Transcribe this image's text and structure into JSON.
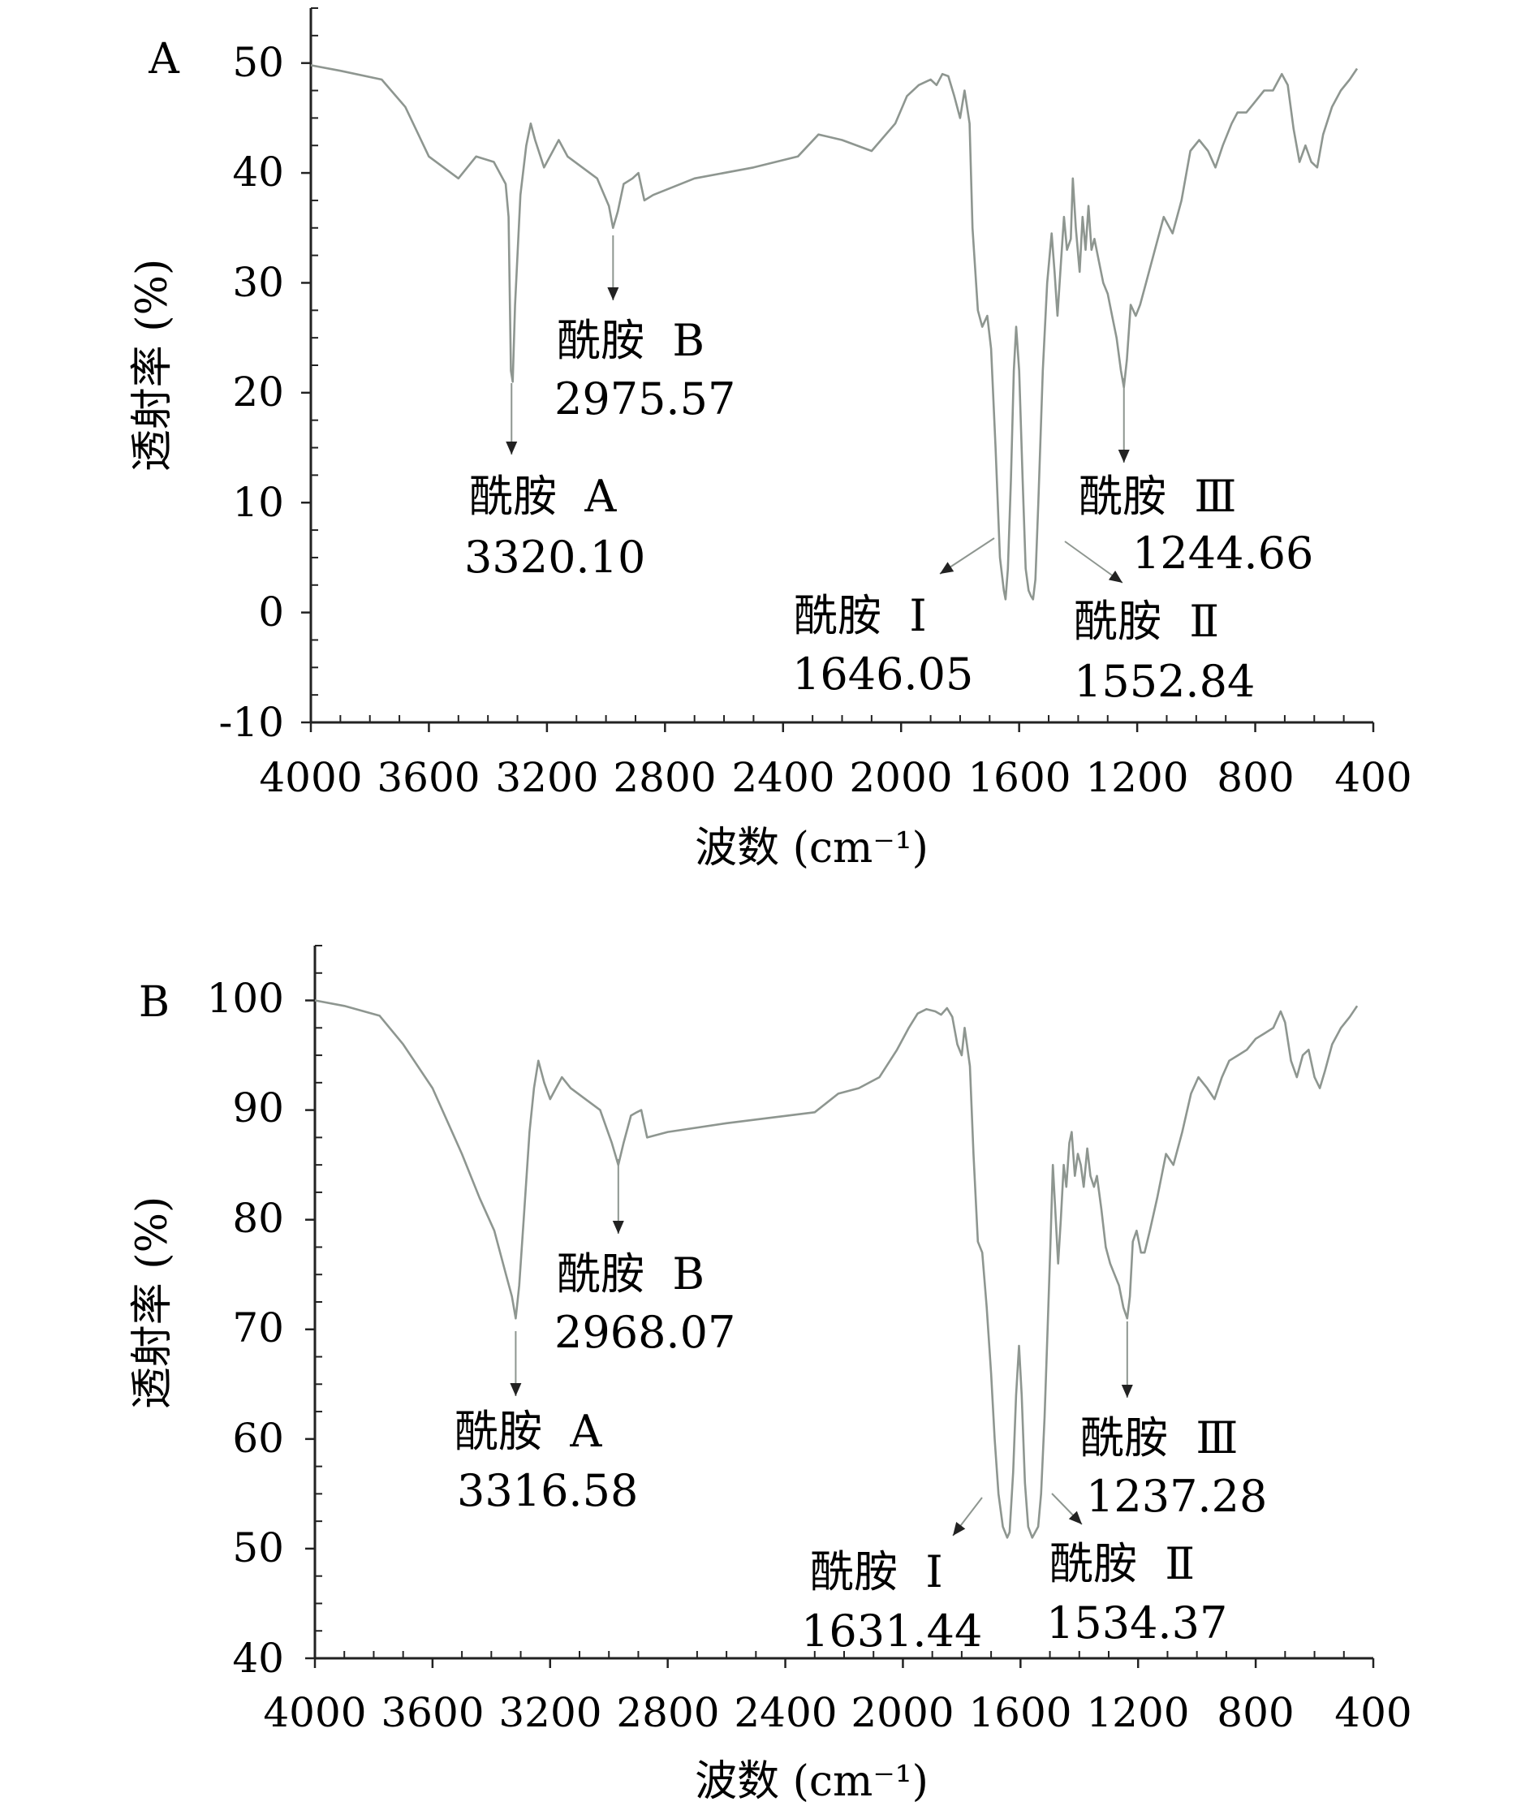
{
  "chart_data": [
    {
      "type": "line",
      "panel_label": "A",
      "xlabel": "波数 (cm⁻¹)",
      "ylabel": "透射率 (%)",
      "xlim": [
        4000,
        400
      ],
      "ylim": [
        -10,
        55
      ],
      "xticks": [
        4000,
        3600,
        3200,
        2800,
        2400,
        2000,
        1600,
        1200,
        800,
        400
      ],
      "yticks": [
        -10,
        0,
        10,
        20,
        30,
        40,
        50
      ],
      "x_reversed": true,
      "series": [
        {
          "color": "#8e9690",
          "points": [
            [
              4000,
              49.8
            ],
            [
              3900,
              49.3
            ],
            [
              3760,
              48.5
            ],
            [
              3680,
              46
            ],
            [
              3600,
              41.5
            ],
            [
              3500,
              39.5
            ],
            [
              3440,
              41.5
            ],
            [
              3380,
              41
            ],
            [
              3340,
              39
            ],
            [
              3330,
              36
            ],
            [
              3322,
              22
            ],
            [
              3316,
              21
            ],
            [
              3308,
              28
            ],
            [
              3290,
              38
            ],
            [
              3270,
              42.5
            ],
            [
              3255,
              44.5
            ],
            [
              3240,
              43
            ],
            [
              3210,
              40.5
            ],
            [
              3180,
              42
            ],
            [
              3160,
              43
            ],
            [
              3130,
              41.5
            ],
            [
              3080,
              40.5
            ],
            [
              3030,
              39.5
            ],
            [
              2990,
              37
            ],
            [
              2976,
              35
            ],
            [
              2960,
              36.5
            ],
            [
              2940,
              39
            ],
            [
              2910,
              39.5
            ],
            [
              2890,
              40
            ],
            [
              2870,
              37.5
            ],
            [
              2840,
              38
            ],
            [
              2700,
              39.5
            ],
            [
              2500,
              40.5
            ],
            [
              2350,
              41.5
            ],
            [
              2280,
              43.5
            ],
            [
              2200,
              43
            ],
            [
              2100,
              42
            ],
            [
              2020,
              44.5
            ],
            [
              1980,
              47
            ],
            [
              1940,
              48
            ],
            [
              1900,
              48.5
            ],
            [
              1880,
              48
            ],
            [
              1860,
              49
            ],
            [
              1840,
              48.8
            ],
            [
              1820,
              47
            ],
            [
              1800,
              45
            ],
            [
              1785,
              47.5
            ],
            [
              1768,
              44.5
            ],
            [
              1758,
              35
            ],
            [
              1740,
              27.5
            ],
            [
              1725,
              26
            ],
            [
              1708,
              27
            ],
            [
              1695,
              24
            ],
            [
              1680,
              15
            ],
            [
              1665,
              5
            ],
            [
              1652,
              2
            ],
            [
              1646,
              1.2
            ],
            [
              1638,
              4
            ],
            [
              1628,
              12
            ],
            [
              1618,
              22
            ],
            [
              1610,
              26
            ],
            [
              1600,
              22
            ],
            [
              1588,
              12
            ],
            [
              1578,
              4
            ],
            [
              1568,
              2
            ],
            [
              1560,
              1.5
            ],
            [
              1553,
              1.2
            ],
            [
              1545,
              3
            ],
            [
              1535,
              10
            ],
            [
              1520,
              22
            ],
            [
              1505,
              30
            ],
            [
              1490,
              34.5
            ],
            [
              1480,
              31
            ],
            [
              1470,
              27
            ],
            [
              1458,
              32
            ],
            [
              1448,
              36
            ],
            [
              1438,
              33
            ],
            [
              1425,
              34
            ],
            [
              1418,
              39.5
            ],
            [
              1408,
              35
            ],
            [
              1395,
              31
            ],
            [
              1385,
              36
            ],
            [
              1375,
              33
            ],
            [
              1365,
              37
            ],
            [
              1355,
              33
            ],
            [
              1345,
              34
            ],
            [
              1330,
              32
            ],
            [
              1315,
              30
            ],
            [
              1300,
              29
            ],
            [
              1285,
              27
            ],
            [
              1270,
              25
            ],
            [
              1255,
              22
            ],
            [
              1245,
              20.5
            ],
            [
              1235,
              23
            ],
            [
              1222,
              28
            ],
            [
              1205,
              27
            ],
            [
              1190,
              28
            ],
            [
              1170,
              30
            ],
            [
              1140,
              33
            ],
            [
              1110,
              36
            ],
            [
              1080,
              34.5
            ],
            [
              1050,
              37.5
            ],
            [
              1020,
              42
            ],
            [
              990,
              43
            ],
            [
              960,
              42
            ],
            [
              935,
              40.5
            ],
            [
              910,
              42.5
            ],
            [
              880,
              44.5
            ],
            [
              860,
              45.5
            ],
            [
              830,
              45.5
            ],
            [
              800,
              46.5
            ],
            [
              770,
              47.5
            ],
            [
              740,
              47.5
            ],
            [
              710,
              49
            ],
            [
              690,
              48
            ],
            [
              670,
              44
            ],
            [
              650,
              41
            ],
            [
              630,
              42.5
            ],
            [
              610,
              41
            ],
            [
              590,
              40.5
            ],
            [
              570,
              43.5
            ],
            [
              540,
              46
            ],
            [
              510,
              47.5
            ],
            [
              480,
              48.5
            ],
            [
              455,
              49.5
            ]
          ]
        }
      ],
      "annotations": [
        {
          "label": "酰胺  A",
          "value": "3320.10",
          "x": 3320
        },
        {
          "label": "酰胺  B",
          "value": "2975.57",
          "x": 2976
        },
        {
          "label": "酰胺  Ⅰ",
          "value": "1646.05",
          "x": 1646
        },
        {
          "label": "酰胺  Ⅱ",
          "value": "1552.84",
          "x": 1553
        },
        {
          "label": "酰胺  Ⅲ",
          "value": "1244.66",
          "x": 1245
        }
      ]
    },
    {
      "type": "line",
      "panel_label": "B",
      "xlabel": "波数 (cm⁻¹)",
      "ylabel": "透射率 (%)",
      "xlim": [
        4000,
        400
      ],
      "ylim": [
        40,
        105
      ],
      "xticks": [
        4000,
        3600,
        3200,
        2800,
        2400,
        2000,
        1600,
        1200,
        800,
        400
      ],
      "yticks": [
        40,
        50,
        60,
        70,
        80,
        90,
        100
      ],
      "x_reversed": true,
      "series": [
        {
          "color": "#8e9690",
          "points": [
            [
              4000,
              100
            ],
            [
              3900,
              99.5
            ],
            [
              3780,
              98.6
            ],
            [
              3700,
              96
            ],
            [
              3600,
              92
            ],
            [
              3500,
              86
            ],
            [
              3440,
              82
            ],
            [
              3390,
              79
            ],
            [
              3350,
              75
            ],
            [
              3330,
              73
            ],
            [
              3317,
              71
            ],
            [
              3305,
              74
            ],
            [
              3290,
              80
            ],
            [
              3270,
              88
            ],
            [
              3255,
              92
            ],
            [
              3240,
              94.5
            ],
            [
              3220,
              92.5
            ],
            [
              3200,
              91
            ],
            [
              3180,
              92
            ],
            [
              3160,
              93
            ],
            [
              3130,
              92
            ],
            [
              3080,
              91
            ],
            [
              3030,
              90
            ],
            [
              2990,
              87
            ],
            [
              2968,
              85
            ],
            [
              2950,
              87
            ],
            [
              2925,
              89.5
            ],
            [
              2905,
              89.8
            ],
            [
              2890,
              90
            ],
            [
              2870,
              87.5
            ],
            [
              2800,
              88
            ],
            [
              2600,
              88.8
            ],
            [
              2450,
              89.3
            ],
            [
              2300,
              89.8
            ],
            [
              2220,
              91.5
            ],
            [
              2150,
              92
            ],
            [
              2080,
              93
            ],
            [
              2020,
              95.5
            ],
            [
              1980,
              97.5
            ],
            [
              1950,
              98.8
            ],
            [
              1920,
              99.2
            ],
            [
              1890,
              99
            ],
            [
              1870,
              98.7
            ],
            [
              1850,
              99.3
            ],
            [
              1832,
              98.5
            ],
            [
              1815,
              96
            ],
            [
              1800,
              95
            ],
            [
              1790,
              97.5
            ],
            [
              1772,
              94
            ],
            [
              1760,
              86
            ],
            [
              1745,
              78
            ],
            [
              1730,
              77
            ],
            [
              1715,
              72
            ],
            [
              1700,
              66
            ],
            [
              1688,
              60
            ],
            [
              1675,
              55
            ],
            [
              1660,
              52
            ],
            [
              1645,
              51
            ],
            [
              1637,
              51.5
            ],
            [
              1625,
              57
            ],
            [
              1615,
              64
            ],
            [
              1605,
              68.5
            ],
            [
              1596,
              64
            ],
            [
              1585,
              56
            ],
            [
              1574,
              52
            ],
            [
              1560,
              51
            ],
            [
              1550,
              51.5
            ],
            [
              1540,
              52
            ],
            [
              1530,
              55
            ],
            [
              1518,
              62
            ],
            [
              1508,
              70
            ],
            [
              1498,
              78
            ],
            [
              1490,
              85
            ],
            [
              1482,
              81
            ],
            [
              1472,
              76
            ],
            [
              1463,
              80
            ],
            [
              1453,
              85
            ],
            [
              1444,
              83
            ],
            [
              1434,
              87
            ],
            [
              1426,
              88
            ],
            [
              1415,
              84
            ],
            [
              1405,
              86
            ],
            [
              1395,
              85
            ],
            [
              1385,
              83
            ],
            [
              1373,
              86.5
            ],
            [
              1362,
              84
            ],
            [
              1350,
              83
            ],
            [
              1340,
              84
            ],
            [
              1325,
              81
            ],
            [
              1310,
              77.5
            ],
            [
              1295,
              76
            ],
            [
              1280,
              75
            ],
            [
              1265,
              74
            ],
            [
              1250,
              72
            ],
            [
              1237,
              71
            ],
            [
              1228,
              73
            ],
            [
              1218,
              78
            ],
            [
              1205,
              79
            ],
            [
              1190,
              77
            ],
            [
              1178,
              77
            ],
            [
              1160,
              79
            ],
            [
              1135,
              82
            ],
            [
              1105,
              86
            ],
            [
              1080,
              85
            ],
            [
              1050,
              88
            ],
            [
              1020,
              91.5
            ],
            [
              995,
              93
            ],
            [
              965,
              92
            ],
            [
              940,
              91
            ],
            [
              915,
              93
            ],
            [
              890,
              94.5
            ],
            [
              860,
              95
            ],
            [
              830,
              95.5
            ],
            [
              800,
              96.5
            ],
            [
              770,
              97
            ],
            [
              740,
              97.5
            ],
            [
              715,
              99
            ],
            [
              700,
              98
            ],
            [
              680,
              94.5
            ],
            [
              660,
              93
            ],
            [
              640,
              95
            ],
            [
              620,
              95.5
            ],
            [
              600,
              93
            ],
            [
              582,
              92
            ],
            [
              565,
              93.5
            ],
            [
              540,
              96
            ],
            [
              510,
              97.5
            ],
            [
              480,
              98.5
            ],
            [
              455,
              99.5
            ]
          ]
        }
      ],
      "annotations": [
        {
          "label": "酰胺  A",
          "value": "3316.58",
          "x": 3317
        },
        {
          "label": "酰胺  B",
          "value": "2968.07",
          "x": 2968
        },
        {
          "label": "酰胺  Ⅰ",
          "value": "1631.44",
          "x": 1631
        },
        {
          "label": "酰胺  Ⅱ",
          "value": "1534.37",
          "x": 1534
        },
        {
          "label": "酰胺  Ⅲ",
          "value": "1237.28",
          "x": 1237
        }
      ]
    }
  ]
}
